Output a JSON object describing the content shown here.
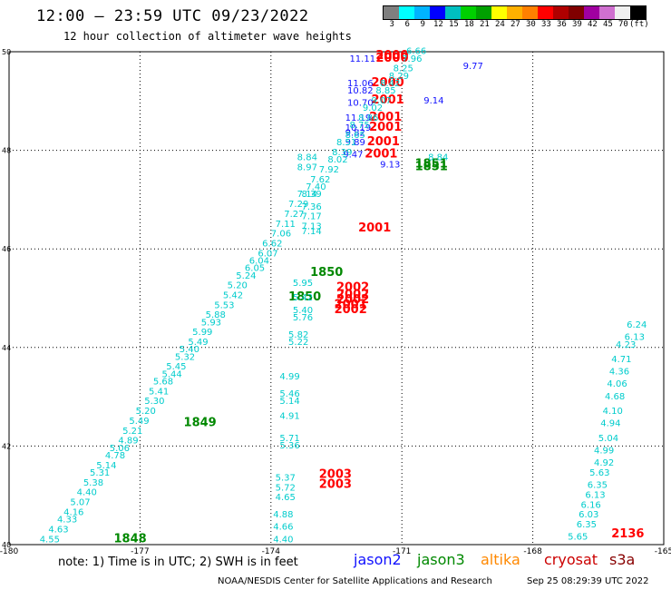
{
  "header": {
    "title": "12:00 — 23:59 UTC 09/23/2022",
    "subtitle": "12 hour collection of altimeter wave heights"
  },
  "legend": {
    "colors": [
      "#7f7f7f",
      "#00ffff",
      "#00b4ff",
      "#0000ff",
      "#00c0c0",
      "#00d000",
      "#00a000",
      "#ffff00",
      "#ffb000",
      "#ff8000",
      "#ff0000",
      "#b00000",
      "#800000",
      "#a000a0",
      "#d070d0",
      "#f0f0f0",
      "#000000"
    ],
    "ticks": [
      "3",
      "6",
      "9",
      "12",
      "15",
      "18",
      "21",
      "24",
      "27",
      "30",
      "33",
      "36",
      "39",
      "42",
      "45",
      "70",
      "(ft)"
    ]
  },
  "chart_data": {
    "type": "scatter",
    "xlim": [
      -180,
      -165
    ],
    "ylim": [
      40,
      50
    ],
    "x_ticks": [
      "-180",
      "-177",
      "-174",
      "-171",
      "-168",
      "-165"
    ],
    "y_ticks": [
      "40",
      "42",
      "44",
      "46",
      "48",
      "50"
    ],
    "grid": true,
    "series": [
      {
        "name": "jason2",
        "color": "#1010ff",
        "points": [
          {
            "x": -172.2,
            "y": 49.8,
            "v": "11.11"
          },
          {
            "x": -172.25,
            "y": 49.3,
            "v": "11.06"
          },
          {
            "x": -172.25,
            "y": 49.15,
            "v": "10.82"
          },
          {
            "x": -172.25,
            "y": 48.9,
            "v": "10.70"
          },
          {
            "x": -172.3,
            "y": 48.6,
            "v": "11.19"
          },
          {
            "x": -172.3,
            "y": 48.4,
            "v": "10.19"
          },
          {
            "x": -172.3,
            "y": 48.3,
            "v": "9.82"
          },
          {
            "x": -172.3,
            "y": 48.1,
            "v": "9.89"
          },
          {
            "x": -172.35,
            "y": 47.85,
            "v": "9.47"
          },
          {
            "x": -171.5,
            "y": 47.65,
            "v": "9.13"
          },
          {
            "x": -170.5,
            "y": 48.95,
            "v": "9.14"
          },
          {
            "x": -169.6,
            "y": 49.65,
            "v": "9.77"
          }
        ]
      },
      {
        "name": "jason3",
        "color": "#008800",
        "points": [
          {
            "x": -170.7,
            "y": 47.65,
            "v": "1851"
          },
          {
            "x": -170.7,
            "y": 47.6,
            "v": "1851"
          },
          {
            "x": -173.1,
            "y": 45.45,
            "v": "1850"
          },
          {
            "x": -173.6,
            "y": 44.95,
            "v": "1850"
          },
          {
            "x": -176.0,
            "y": 42.4,
            "v": "1849"
          },
          {
            "x": -177.6,
            "y": 40.05,
            "v": "1848"
          }
        ]
      },
      {
        "name": "cryosat",
        "color": "#ff0000",
        "points": [
          {
            "x": -171.6,
            "y": 49.85,
            "v": "2000"
          },
          {
            "x": -171.6,
            "y": 49.8,
            "v": "2000"
          },
          {
            "x": -171.7,
            "y": 49.3,
            "v": "2000"
          },
          {
            "x": -171.7,
            "y": 48.95,
            "v": "2001"
          },
          {
            "x": -171.75,
            "y": 48.6,
            "v": "2001"
          },
          {
            "x": -171.75,
            "y": 48.4,
            "v": "2001"
          },
          {
            "x": -171.8,
            "y": 48.1,
            "v": "2001"
          },
          {
            "x": -171.85,
            "y": 47.85,
            "v": "2001"
          },
          {
            "x": -172.0,
            "y": 46.35,
            "v": "2001"
          },
          {
            "x": -172.5,
            "y": 45.15,
            "v": "2002"
          },
          {
            "x": -172.5,
            "y": 45.0,
            "v": "2002"
          },
          {
            "x": -172.5,
            "y": 44.9,
            "v": "2002"
          },
          {
            "x": -172.55,
            "y": 44.8,
            "v": "2001"
          },
          {
            "x": -172.55,
            "y": 44.7,
            "v": "2002"
          },
          {
            "x": -172.9,
            "y": 41.35,
            "v": "2003"
          },
          {
            "x": -172.9,
            "y": 41.15,
            "v": "2003"
          },
          {
            "x": -166.2,
            "y": 40.15,
            "v": "2136"
          }
        ]
      },
      {
        "name": "s3a",
        "color": "#00cccc",
        "points": [
          {
            "x": -170.4,
            "y": 47.8,
            "v": "8.84"
          },
          {
            "x": -173.4,
            "y": 47.8,
            "v": "8.84"
          },
          {
            "x": -173.4,
            "y": 47.6,
            "v": "8.97"
          },
          {
            "x": -173.3,
            "y": 47.05,
            "v": "8.39"
          },
          {
            "x": -173.3,
            "y": 46.8,
            "v": "7.36"
          },
          {
            "x": -173.3,
            "y": 46.6,
            "v": "7.17"
          },
          {
            "x": -173.3,
            "y": 46.4,
            "v": "7.13"
          },
          {
            "x": -173.3,
            "y": 46.3,
            "v": "7.14"
          },
          {
            "x": -173.5,
            "y": 45.25,
            "v": "5.95"
          },
          {
            "x": -173.5,
            "y": 44.95,
            "v": "5.42"
          },
          {
            "x": -173.5,
            "y": 44.7,
            "v": "5.40"
          },
          {
            "x": -173.5,
            "y": 44.55,
            "v": "5.76"
          },
          {
            "x": -173.6,
            "y": 44.2,
            "v": "5.82"
          },
          {
            "x": -173.6,
            "y": 44.05,
            "v": "5.22"
          },
          {
            "x": -173.8,
            "y": 43.35,
            "v": "4.99"
          },
          {
            "x": -173.8,
            "y": 43.0,
            "v": "5.46"
          },
          {
            "x": -173.8,
            "y": 42.85,
            "v": "5.14"
          },
          {
            "x": -173.8,
            "y": 42.55,
            "v": "4.91"
          },
          {
            "x": -173.8,
            "y": 42.1,
            "v": "5.71"
          },
          {
            "x": -173.8,
            "y": 41.95,
            "v": "5.36"
          },
          {
            "x": -173.9,
            "y": 41.3,
            "v": "5.37"
          },
          {
            "x": -173.9,
            "y": 41.1,
            "v": "5.72"
          },
          {
            "x": -173.9,
            "y": 40.9,
            "v": "4.65"
          },
          {
            "x": -173.95,
            "y": 40.55,
            "v": "4.88"
          },
          {
            "x": -173.95,
            "y": 40.3,
            "v": "4.66"
          },
          {
            "x": -173.95,
            "y": 40.05,
            "v": "4.40"
          },
          {
            "x": -167.2,
            "y": 40.1,
            "v": "5.65"
          },
          {
            "x": -167.0,
            "y": 40.35,
            "v": "6.35"
          },
          {
            "x": -166.95,
            "y": 40.55,
            "v": "6.03"
          },
          {
            "x": -166.9,
            "y": 40.75,
            "v": "6.16"
          },
          {
            "x": -166.8,
            "y": 40.95,
            "v": "6.13"
          },
          {
            "x": -166.75,
            "y": 41.15,
            "v": "6.35"
          },
          {
            "x": -166.7,
            "y": 41.4,
            "v": "5.63"
          },
          {
            "x": -166.6,
            "y": 41.6,
            "v": "4.92"
          },
          {
            "x": -166.6,
            "y": 41.85,
            "v": "4.99"
          },
          {
            "x": -166.5,
            "y": 42.1,
            "v": "5.04"
          },
          {
            "x": -166.45,
            "y": 42.4,
            "v": "4.94"
          },
          {
            "x": -166.4,
            "y": 42.65,
            "v": "4.10"
          },
          {
            "x": -166.35,
            "y": 42.95,
            "v": "4.68"
          },
          {
            "x": -166.3,
            "y": 43.2,
            "v": "4.06"
          },
          {
            "x": -166.25,
            "y": 43.45,
            "v": "4.36"
          },
          {
            "x": -166.2,
            "y": 43.7,
            "v": "4.71"
          },
          {
            "x": -166.1,
            "y": 44.0,
            "v": "4.23"
          },
          {
            "x": -165.9,
            "y": 44.15,
            "v": "6.13"
          },
          {
            "x": -165.85,
            "y": 44.4,
            "v": "6.24"
          },
          {
            "x": -179.3,
            "y": 40.05,
            "v": "4.55"
          },
          {
            "x": -179.1,
            "y": 40.25,
            "v": "4.63"
          },
          {
            "x": -178.9,
            "y": 40.45,
            "v": "4.33"
          },
          {
            "x": -178.75,
            "y": 40.6,
            "v": "4.16"
          },
          {
            "x": -178.6,
            "y": 40.8,
            "v": "5.07"
          },
          {
            "x": -178.45,
            "y": 41.0,
            "v": "4.40"
          },
          {
            "x": -178.3,
            "y": 41.2,
            "v": "5.38"
          },
          {
            "x": -178.15,
            "y": 41.4,
            "v": "5.31"
          },
          {
            "x": -178.0,
            "y": 41.55,
            "v": "5.14"
          },
          {
            "x": -177.8,
            "y": 41.75,
            "v": "4.78"
          },
          {
            "x": -177.7,
            "y": 41.9,
            "v": "5.06"
          },
          {
            "x": -177.5,
            "y": 42.05,
            "v": "4.89"
          },
          {
            "x": -177.4,
            "y": 42.25,
            "v": "5.21"
          },
          {
            "x": -177.25,
            "y": 42.45,
            "v": "5.49"
          },
          {
            "x": -177.1,
            "y": 42.65,
            "v": "5.20"
          },
          {
            "x": -176.9,
            "y": 42.85,
            "v": "5.30"
          },
          {
            "x": -176.8,
            "y": 43.05,
            "v": "5.41"
          },
          {
            "x": -176.7,
            "y": 43.25,
            "v": "5.68"
          },
          {
            "x": -176.5,
            "y": 43.4,
            "v": "5.44"
          },
          {
            "x": -176.4,
            "y": 43.55,
            "v": "5.45"
          },
          {
            "x": -176.2,
            "y": 43.75,
            "v": "5.32"
          },
          {
            "x": -176.1,
            "y": 43.9,
            "v": "5.40"
          },
          {
            "x": -175.9,
            "y": 44.05,
            "v": "5.49"
          },
          {
            "x": -175.8,
            "y": 44.25,
            "v": "5.99"
          },
          {
            "x": -175.6,
            "y": 44.45,
            "v": "5.93"
          },
          {
            "x": -175.5,
            "y": 44.6,
            "v": "5.88"
          },
          {
            "x": -175.3,
            "y": 44.8,
            "v": "5.53"
          },
          {
            "x": -175.1,
            "y": 45.0,
            "v": "5.42"
          },
          {
            "x": -175.0,
            "y": 45.2,
            "v": "5.20"
          },
          {
            "x": -174.8,
            "y": 45.4,
            "v": "5.24"
          },
          {
            "x": -174.6,
            "y": 45.55,
            "v": "6.05"
          },
          {
            "x": -174.5,
            "y": 45.7,
            "v": "6.04"
          },
          {
            "x": -174.3,
            "y": 45.85,
            "v": "6.07"
          },
          {
            "x": -174.2,
            "y": 46.05,
            "v": "6.62"
          },
          {
            "x": -174.0,
            "y": 46.25,
            "v": "7.06"
          },
          {
            "x": -173.9,
            "y": 46.45,
            "v": "7.11"
          },
          {
            "x": -173.7,
            "y": 46.65,
            "v": "7.27"
          },
          {
            "x": -173.6,
            "y": 46.85,
            "v": "7.29"
          },
          {
            "x": -173.4,
            "y": 47.05,
            "v": "7.14"
          },
          {
            "x": -173.2,
            "y": 47.2,
            "v": "7.40"
          },
          {
            "x": -173.1,
            "y": 47.35,
            "v": "7.62"
          },
          {
            "x": -172.9,
            "y": 47.55,
            "v": "7.92"
          },
          {
            "x": -172.7,
            "y": 47.75,
            "v": "8.02"
          },
          {
            "x": -172.6,
            "y": 47.9,
            "v": "8.39"
          },
          {
            "x": -172.5,
            "y": 48.1,
            "v": "8.51"
          },
          {
            "x": -172.3,
            "y": 48.25,
            "v": "8.65"
          },
          {
            "x": -172.2,
            "y": 48.45,
            "v": "8.75"
          },
          {
            "x": -172.0,
            "y": 48.6,
            "v": "8.86"
          },
          {
            "x": -171.9,
            "y": 48.8,
            "v": "9.02"
          },
          {
            "x": -171.7,
            "y": 48.95,
            "v": "9.07"
          },
          {
            "x": -171.6,
            "y": 49.15,
            "v": "8.85"
          },
          {
            "x": -171.5,
            "y": 49.3,
            "v": "8.42"
          },
          {
            "x": -171.3,
            "y": 49.45,
            "v": "8.29"
          },
          {
            "x": -171.2,
            "y": 49.6,
            "v": "8.25"
          },
          {
            "x": -171.0,
            "y": 49.8,
            "v": "7.96"
          },
          {
            "x": -170.9,
            "y": 49.95,
            "v": "6.66"
          }
        ]
      }
    ]
  },
  "footer": {
    "note": "note: 1) Time is in UTC; 2) SWH is in feet",
    "sat_jason2": "jason2",
    "sat_jason3": "jason3",
    "sat_altika": "altika",
    "sat_cryosat": "cryosat",
    "sat_s3a": "s3a",
    "credit": "NOAA/NESDIS Center for Satellite Applications and Research",
    "timestamp": "Sep 25 08:29:39 UTC 2022"
  }
}
